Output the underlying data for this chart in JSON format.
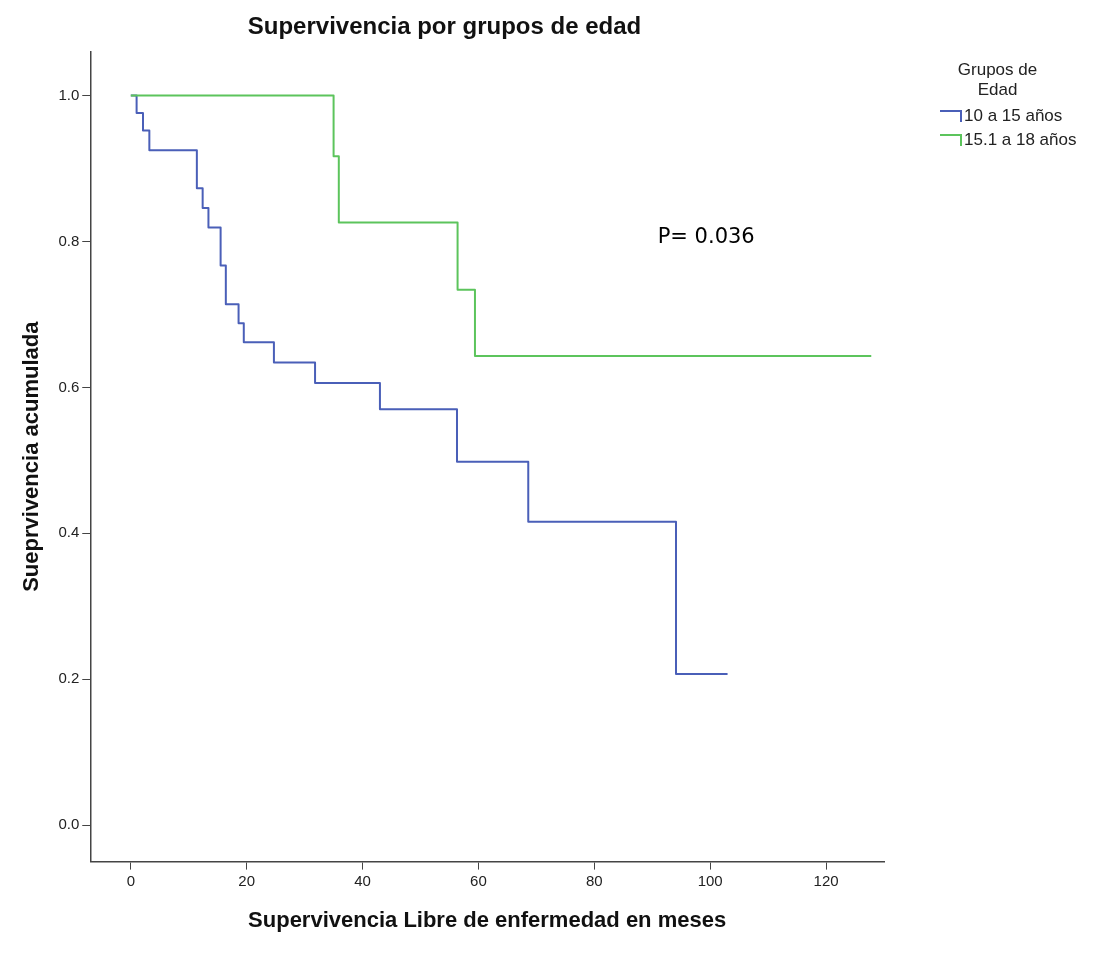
{
  "chart_data": {
    "type": "step",
    "title": "Supervivencia por grupos de edad",
    "xlabel": "Supervivencia Libre de enfermedad en meses",
    "ylabel": "Sueprvivencia acumulada",
    "legend_title": "Grupos de Edad",
    "series": [
      {
        "name": "10 a 15 años",
        "color": "#4a5fb8",
        "x": [
          0,
          1.0,
          2.1,
          3.2,
          11.4,
          12.4,
          13.4,
          15.5,
          16.4,
          18.6,
          19.5,
          24.7,
          31.8,
          43.0,
          56.3,
          68.6,
          94.1,
          103
        ],
        "values": [
          1.0,
          0.976,
          0.952,
          0.925,
          0.873,
          0.846,
          0.819,
          0.767,
          0.714,
          0.688,
          0.662,
          0.634,
          0.606,
          0.57,
          0.498,
          0.416,
          0.207,
          0.207
        ]
      },
      {
        "name": "15.1 a 18 años",
        "color": "#5cc45c",
        "x": [
          0,
          35.0,
          35.9,
          56.4,
          59.4,
          127.8
        ],
        "values": [
          1.0,
          0.917,
          0.826,
          0.734,
          0.643,
          0.643
        ]
      }
    ],
    "annotations": [
      "P= 0.036"
    ],
    "xlim": [
      -7,
      130
    ],
    "ylim": [
      -0.05,
      1.06
    ],
    "xticks": [
      0,
      20,
      40,
      60,
      80,
      100,
      120
    ],
    "yticks": [
      {
        "value": 0,
        "label": "0.0"
      },
      {
        "value": 0.2,
        "label": "0.2"
      },
      {
        "value": 0.4,
        "label": "0.4"
      },
      {
        "value": 0.6,
        "label": "0.6"
      },
      {
        "value": 0.8,
        "label": "0.8"
      },
      {
        "value": 1.0,
        "label": "1.0"
      }
    ],
    "grid": false,
    "legend": "top right",
    "marker": "none",
    "line_style": "solid"
  }
}
